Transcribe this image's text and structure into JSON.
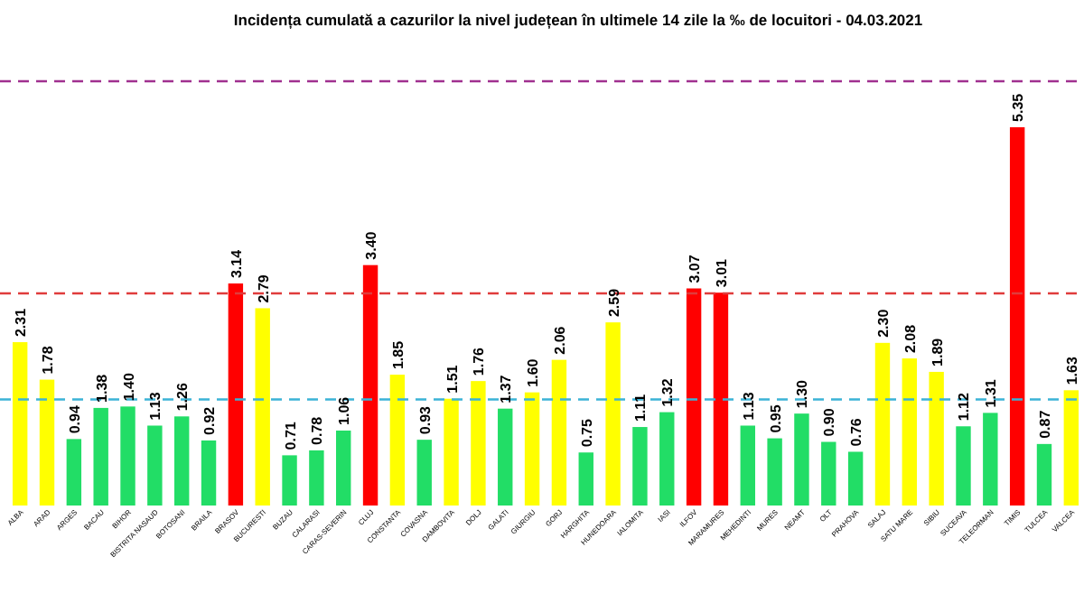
{
  "chart_data": {
    "type": "bar",
    "title": "Incidența cumulată a cazurilor la nivel județean în ultimele 14 zile la ‰ de locuitori - 04.03.2021",
    "categories": [
      "ALBA",
      "ARAD",
      "ARGES",
      "BACAU",
      "BIHOR",
      "BISTRITA NASAUD",
      "BOTOSANI",
      "BRAILA",
      "BRASOV",
      "BUCURESTI",
      "BUZAU",
      "CALARASI",
      "CARAS-SEVERIN",
      "CLUJ",
      "CONSTANTA",
      "COVASNA",
      "DAMBOVITA",
      "DOLJ",
      "GALATI",
      "GIURGIU",
      "GORJ",
      "HARGHITA",
      "HUNEDOARA",
      "IALOMITA",
      "IASI",
      "ILFOV",
      "MARAMURES",
      "MEHEDINTI",
      "MURES",
      "NEAMT",
      "OLT",
      "PRAHOVA",
      "SALAJ",
      "SATU MARE",
      "SIBIU",
      "SUCEAVA",
      "TELEORMAN",
      "TIMIS",
      "TULCEA",
      "VALCEA"
    ],
    "values": [
      2.31,
      1.78,
      0.94,
      1.38,
      1.4,
      1.13,
      1.26,
      0.92,
      3.14,
      2.79,
      0.71,
      0.78,
      1.06,
      3.4,
      1.85,
      0.93,
      1.51,
      1.76,
      1.37,
      1.6,
      2.06,
      0.75,
      2.59,
      1.11,
      1.32,
      3.07,
      3.01,
      1.13,
      0.95,
      1.3,
      0.9,
      0.76,
      2.3,
      2.08,
      1.89,
      1.12,
      1.31,
      5.35,
      0.87,
      1.63
    ],
    "colors": [
      "#ffff00",
      "#ffff00",
      "#22dd66",
      "#22dd66",
      "#22dd66",
      "#22dd66",
      "#22dd66",
      "#22dd66",
      "#ff0000",
      "#ffff00",
      "#22dd66",
      "#22dd66",
      "#22dd66",
      "#ff0000",
      "#ffff00",
      "#22dd66",
      "#ffff00",
      "#ffff00",
      "#22dd66",
      "#ffff00",
      "#ffff00",
      "#22dd66",
      "#ffff00",
      "#22dd66",
      "#22dd66",
      "#ff0000",
      "#ff0000",
      "#22dd66",
      "#22dd66",
      "#22dd66",
      "#22dd66",
      "#22dd66",
      "#ffff00",
      "#ffff00",
      "#ffff00",
      "#22dd66",
      "#22dd66",
      "#ff0000",
      "#22dd66",
      "#ffff00"
    ],
    "value_labels": [
      "2.31",
      "1.78",
      "0.94",
      "1.38",
      "1.40",
      "1.13",
      "1.26",
      "0.92",
      "3.14",
      "2.79",
      "0.71",
      "0.78",
      "1.06",
      "3.40",
      "1.85",
      "0.93",
      "1.51",
      "1.76",
      "1.37",
      "1.60",
      "2.06",
      "0.75",
      "2.59",
      "1.11",
      "1.32",
      "3.07",
      "3.01",
      "1.13",
      "0.95",
      "1.30",
      "0.90",
      "0.76",
      "2.30",
      "2.08",
      "1.89",
      "1.12",
      "1.31",
      "5.35",
      "0.87",
      "1.63"
    ],
    "ref_lines": [
      {
        "axis": "y",
        "value": 1.5,
        "color": "#3bb3d6",
        "line_style": "dashed"
      },
      {
        "axis": "y",
        "value": 3,
        "color": "#e03c3c",
        "line_style": "dashed"
      },
      {
        "axis": "y",
        "value": 6,
        "color": "#a0308f",
        "line_style": "dashed"
      }
    ]
  }
}
